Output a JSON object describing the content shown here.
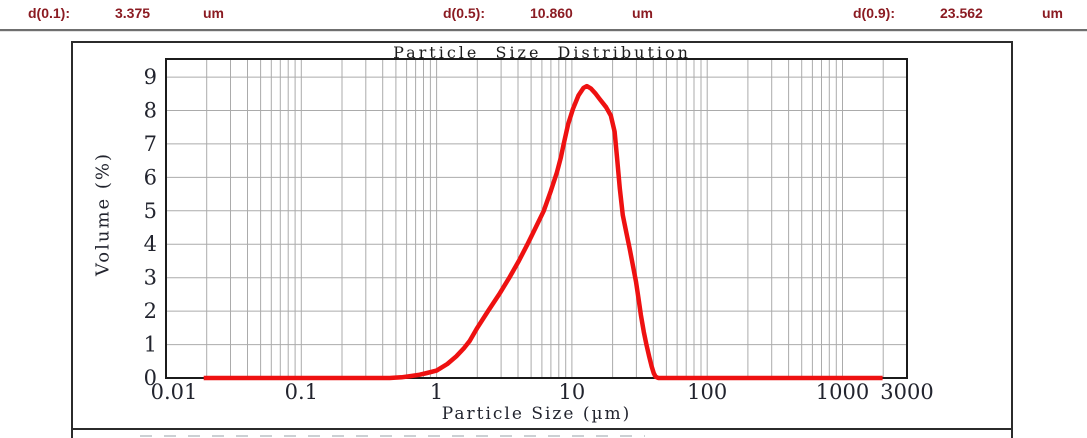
{
  "summary": {
    "items": [
      {
        "label": "d(0.1):",
        "value": "3.375",
        "unit": "um"
      },
      {
        "label": "d(0.5):",
        "value": "10.860",
        "unit": "um"
      },
      {
        "label": "d(0.9):",
        "value": "23.562",
        "unit": "um"
      }
    ],
    "text_color": "#8b1b22"
  },
  "chart_data": {
    "type": "line",
    "title": "Particle Size Distribution",
    "xlabel": "Particle Size (µm)",
    "ylabel": "Volume (%)",
    "x_scale": "log",
    "xlim": [
      0.01,
      3000
    ],
    "ylim": [
      0,
      9.54
    ],
    "x_ticks": [
      {
        "value": 0.01,
        "label": "0.01"
      },
      {
        "value": 0.1,
        "label": "0.1"
      },
      {
        "value": 1,
        "label": "1"
      },
      {
        "value": 10,
        "label": "10"
      },
      {
        "value": 100,
        "label": "100"
      },
      {
        "value": 1000,
        "label": "1000"
      },
      {
        "value": 3000,
        "label": "3000"
      }
    ],
    "y_ticks": [
      0,
      1,
      2,
      3,
      4,
      5,
      6,
      7,
      8,
      9
    ],
    "grid": true,
    "legend": false,
    "colors": {
      "curve": "#ee1111",
      "grid": "#ababab",
      "axis": "#1b1b1b",
      "tick_text": "#22242e"
    },
    "series": [
      {
        "name": "Volume (%)",
        "points": [
          [
            0.019,
            0
          ],
          [
            0.45,
            0
          ],
          [
            0.55,
            0.02
          ],
          [
            0.65,
            0.06
          ],
          [
            0.75,
            0.1
          ],
          [
            0.85,
            0.15
          ],
          [
            1.0,
            0.22
          ],
          [
            1.2,
            0.42
          ],
          [
            1.4,
            0.65
          ],
          [
            1.6,
            0.9
          ],
          [
            1.75,
            1.1
          ],
          [
            2.0,
            1.5
          ],
          [
            2.4,
            2.0
          ],
          [
            2.9,
            2.5
          ],
          [
            3.45,
            3.0
          ],
          [
            4.05,
            3.5
          ],
          [
            4.7,
            4.0
          ],
          [
            5.4,
            4.5
          ],
          [
            6.2,
            5.0
          ],
          [
            7.0,
            5.6
          ],
          [
            7.75,
            6.15
          ],
          [
            8.3,
            6.6
          ],
          [
            8.7,
            7.0
          ],
          [
            9.4,
            7.6
          ],
          [
            10.2,
            8.05
          ],
          [
            11.2,
            8.45
          ],
          [
            12.2,
            8.68
          ],
          [
            12.9,
            8.73
          ],
          [
            13.8,
            8.66
          ],
          [
            15.0,
            8.5
          ],
          [
            16.0,
            8.35
          ],
          [
            17.9,
            8.1
          ],
          [
            19.4,
            7.85
          ],
          [
            20.7,
            7.37
          ],
          [
            21.6,
            6.57
          ],
          [
            22.6,
            5.67
          ],
          [
            23.8,
            4.87
          ],
          [
            25.2,
            4.37
          ],
          [
            26.7,
            3.88
          ],
          [
            28.2,
            3.38
          ],
          [
            29.8,
            2.88
          ],
          [
            31.1,
            2.38
          ],
          [
            32.4,
            1.88
          ],
          [
            34.0,
            1.38
          ],
          [
            35.6,
            0.99
          ],
          [
            37.3,
            0.64
          ],
          [
            38.9,
            0.34
          ],
          [
            40.3,
            0.14
          ],
          [
            41.6,
            0.04
          ],
          [
            43.5,
            0
          ],
          [
            1980,
            0
          ]
        ]
      }
    ]
  }
}
